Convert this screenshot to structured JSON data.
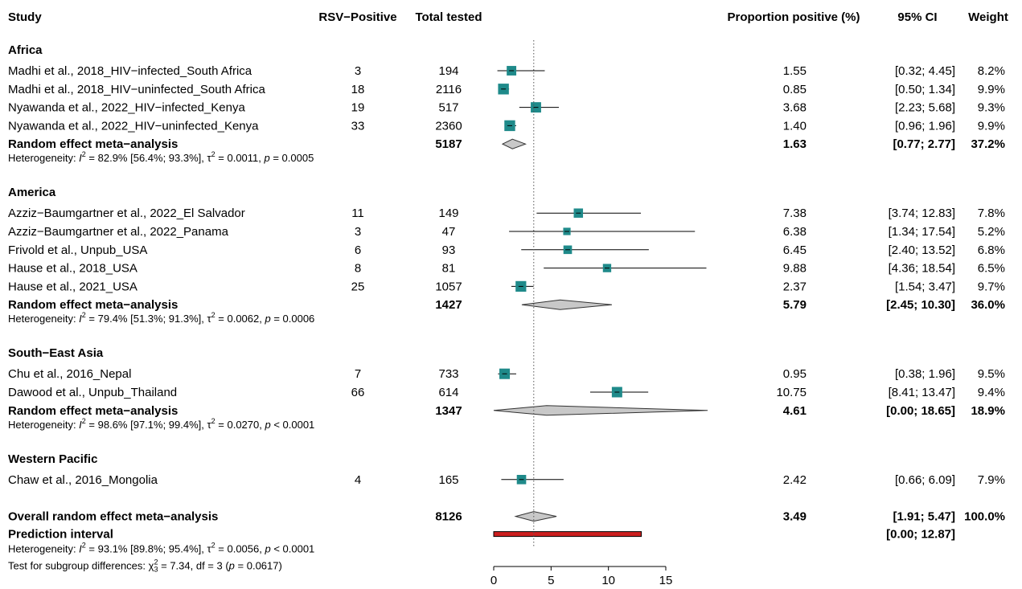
{
  "headers": {
    "study": "Study",
    "events": "RSV−Positive",
    "total": "Total tested",
    "prop": "Proportion positive (%)",
    "ci": "95% CI",
    "weight": "Weight"
  },
  "groups": [
    {
      "name": "Africa",
      "studies": [
        {
          "study": "Madhi et al., 2018_HIV−infected_South Africa",
          "events": "3",
          "total": "194",
          "est": 1.55,
          "lo": 0.32,
          "hi": 4.45,
          "est_text": "1.55",
          "ci_text": "[0.32;  4.45]",
          "weight_text": "8.2%",
          "weight": 8.2
        },
        {
          "study": "Madhi et al., 2018_HIV−uninfected_South Africa",
          "events": "18",
          "total": "2116",
          "est": 0.85,
          "lo": 0.5,
          "hi": 1.34,
          "est_text": "0.85",
          "ci_text": "[0.50;  1.34]",
          "weight_text": "9.9%",
          "weight": 9.9
        },
        {
          "study": "Nyawanda et al., 2022_HIV−infected_Kenya",
          "events": "19",
          "total": "517",
          "est": 3.68,
          "lo": 2.23,
          "hi": 5.68,
          "est_text": "3.68",
          "ci_text": "[2.23;  5.68]",
          "weight_text": "9.3%",
          "weight": 9.3
        },
        {
          "study": "Nyawanda et al., 2022_HIV−uninfected_Kenya",
          "events": "33",
          "total": "2360",
          "est": 1.4,
          "lo": 0.96,
          "hi": 1.96,
          "est_text": "1.40",
          "ci_text": "[0.96;  1.96]",
          "weight_text": "9.9%",
          "weight": 9.9
        }
      ],
      "pooled": {
        "label": "Random effect meta−analysis",
        "total": "5187",
        "est": 1.63,
        "lo": 0.77,
        "hi": 2.77,
        "est_text": "1.63",
        "ci_text": "[0.77;  2.77]",
        "weight_text": "37.2%"
      },
      "het": {
        "pre": "Heterogeneity: ",
        "i2": "82.9% [56.4%; 93.3%]",
        "tau2": "0.0011",
        "p": "0.0005",
        "p_op": "="
      }
    },
    {
      "name": "America",
      "studies": [
        {
          "study": "Azziz−Baumgartner et al., 2022_El Salvador",
          "events": "11",
          "total": "149",
          "est": 7.38,
          "lo": 3.74,
          "hi": 12.83,
          "est_text": "7.38",
          "ci_text": "[3.74; 12.83]",
          "weight_text": "7.8%",
          "weight": 7.8
        },
        {
          "study": "Azziz−Baumgartner et al., 2022_Panama",
          "events": "3",
          "total": "47",
          "est": 6.38,
          "lo": 1.34,
          "hi": 17.54,
          "est_text": "6.38",
          "ci_text": "[1.34; 17.54]",
          "weight_text": "5.2%",
          "weight": 5.2
        },
        {
          "study": "Frivold et al., Unpub_USA",
          "events": "6",
          "total": "93",
          "est": 6.45,
          "lo": 2.4,
          "hi": 13.52,
          "est_text": "6.45",
          "ci_text": "[2.40; 13.52]",
          "weight_text": "6.8%",
          "weight": 6.8
        },
        {
          "study": "Hause et al., 2018_USA",
          "events": "8",
          "total": "81",
          "est": 9.88,
          "lo": 4.36,
          "hi": 18.54,
          "est_text": "9.88",
          "ci_text": "[4.36; 18.54]",
          "weight_text": "6.5%",
          "weight": 6.5
        },
        {
          "study": "Hause et al., 2021_USA",
          "events": "25",
          "total": "1057",
          "est": 2.37,
          "lo": 1.54,
          "hi": 3.47,
          "est_text": "2.37",
          "ci_text": "[1.54;  3.47]",
          "weight_text": "9.7%",
          "weight": 9.7
        }
      ],
      "pooled": {
        "label": "Random effect meta−analysis",
        "total": "1427",
        "est": 5.79,
        "lo": 2.45,
        "hi": 10.3,
        "est_text": "5.79",
        "ci_text": "[2.45; 10.30]",
        "weight_text": "36.0%"
      },
      "het": {
        "pre": "Heterogeneity: ",
        "i2": "79.4% [51.3%; 91.3%]",
        "tau2": "0.0062",
        "p": "0.0006",
        "p_op": "="
      }
    },
    {
      "name": "South−East Asia",
      "studies": [
        {
          "study": "Chu et al., 2016_Nepal",
          "events": "7",
          "total": "733",
          "est": 0.95,
          "lo": 0.38,
          "hi": 1.96,
          "est_text": "0.95",
          "ci_text": "[0.38;  1.96]",
          "weight_text": "9.5%",
          "weight": 9.5
        },
        {
          "study": "Dawood et al., Unpub_Thailand",
          "events": "66",
          "total": "614",
          "est": 10.75,
          "lo": 8.41,
          "hi": 13.47,
          "est_text": "10.75",
          "ci_text": "[8.41; 13.47]",
          "weight_text": "9.4%",
          "weight": 9.4
        }
      ],
      "pooled": {
        "label": "Random effect meta−analysis",
        "total": "1347",
        "est": 4.61,
        "lo": 0.0,
        "hi": 18.65,
        "est_text": "4.61",
        "ci_text": "[0.00; 18.65]",
        "weight_text": "18.9%"
      },
      "het": {
        "pre": "Heterogeneity: ",
        "i2": "98.6% [97.1%; 99.4%]",
        "tau2": "0.0270",
        "p": "0.0001",
        "p_op": "<"
      }
    },
    {
      "name": "Western Pacific",
      "studies": [
        {
          "study": "Chaw et al., 2016_Mongolia",
          "events": "4",
          "total": "165",
          "est": 2.42,
          "lo": 0.66,
          "hi": 6.09,
          "est_text": "2.42",
          "ci_text": "[0.66;  6.09]",
          "weight_text": "7.9%",
          "weight": 7.9
        }
      ]
    }
  ],
  "overall": {
    "label": "Overall random effect meta−analysis",
    "total": "8126",
    "est": 3.49,
    "lo": 1.91,
    "hi": 5.47,
    "est_text": "3.49",
    "ci_text": "[1.91;  5.47]",
    "weight_text": "100.0%"
  },
  "prediction": {
    "label": "Prediction interval",
    "lo": 0.0,
    "hi": 12.87,
    "ci_text": "[0.00; 12.87]"
  },
  "overall_het": {
    "pre": "Heterogeneity: ",
    "i2": "93.1% [89.8%; 95.4%]",
    "tau2": "0.0056",
    "p": "0.0001",
    "p_op": "<"
  },
  "subgroup_test": {
    "pre": "Test for subgroup differences: ",
    "chi2": "7.34",
    "df_text": ", df = 3 (",
    "p": "0.0617"
  },
  "colors": {
    "square": "#1f8a8a",
    "diamond": "#c8c8c8",
    "prediction": "#cc1f1f",
    "ref_line": "#555555"
  },
  "chart_data": {
    "type": "forest",
    "xlim": [
      0,
      15
    ],
    "ticks": [
      "0",
      "5",
      "10",
      "15"
    ],
    "reference_line": 3.49,
    "xlabel": ""
  }
}
